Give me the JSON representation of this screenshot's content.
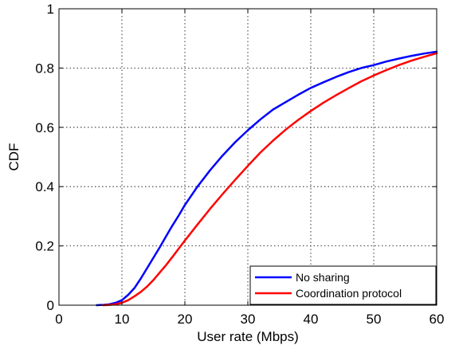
{
  "chart_data": {
    "type": "line",
    "title": "",
    "xlabel": "User rate (Mbps)",
    "ylabel": "CDF",
    "xlim": [
      0,
      60
    ],
    "ylim": [
      0,
      1
    ],
    "xticks": [
      0,
      10,
      20,
      30,
      40,
      50,
      60
    ],
    "yticks": [
      0,
      0.2,
      0.4,
      0.6,
      0.8,
      1
    ],
    "xtick_labels": [
      "0",
      "10",
      "20",
      "30",
      "40",
      "50",
      "60"
    ],
    "ytick_labels": [
      "0",
      "0.2",
      "0.4",
      "0.6",
      "0.8",
      "1"
    ],
    "grid": true,
    "legend_position": "bottom-right",
    "series": [
      {
        "name": "No sharing",
        "color": "#0000ff",
        "x": [
          6,
          7,
          8,
          9,
          10,
          11,
          12,
          13,
          14,
          15,
          16,
          17,
          18,
          19,
          20,
          22,
          24,
          26,
          28,
          30,
          32,
          34,
          36,
          38,
          40,
          42,
          44,
          46,
          48,
          50,
          52,
          54,
          56,
          58,
          60
        ],
        "y": [
          0,
          0.001,
          0.003,
          0.008,
          0.017,
          0.035,
          0.058,
          0.09,
          0.125,
          0.16,
          0.195,
          0.232,
          0.268,
          0.302,
          0.338,
          0.4,
          0.455,
          0.505,
          0.55,
          0.59,
          0.627,
          0.66,
          0.685,
          0.71,
          0.733,
          0.752,
          0.77,
          0.786,
          0.8,
          0.81,
          0.822,
          0.832,
          0.841,
          0.849,
          0.855
        ]
      },
      {
        "name": "Coordination protocol",
        "color": "#ff0000",
        "x": [
          7,
          8,
          9,
          10,
          11,
          12,
          13,
          14,
          15,
          16,
          17,
          18,
          19,
          20,
          22,
          24,
          26,
          28,
          30,
          32,
          34,
          36,
          38,
          40,
          42,
          44,
          46,
          48,
          50,
          52,
          54,
          56,
          58,
          60
        ],
        "y": [
          0,
          0.001,
          0.003,
          0.008,
          0.017,
          0.03,
          0.045,
          0.063,
          0.085,
          0.11,
          0.135,
          0.162,
          0.19,
          0.218,
          0.272,
          0.325,
          0.375,
          0.423,
          0.47,
          0.515,
          0.555,
          0.592,
          0.625,
          0.655,
          0.683,
          0.708,
          0.732,
          0.755,
          0.775,
          0.793,
          0.81,
          0.825,
          0.838,
          0.85
        ]
      }
    ]
  }
}
